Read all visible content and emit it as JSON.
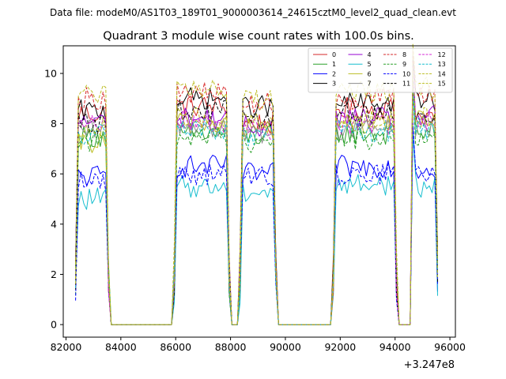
{
  "header": {
    "data_file": "Data file: modeM0/AS1T03_189T01_9000003614_24615cztM0_level2_quad_clean.evt",
    "title": "Quadrant 3 module wise count rates with 100.0s bins."
  },
  "chart_data": {
    "type": "line",
    "title": "Quadrant 3 module wise count rates with 100.0s bins.",
    "x_offset_label": "+3.247e8",
    "xlim": [
      81900,
      96200
    ],
    "ylim": [
      -0.5,
      11.1
    ],
    "xticks": [
      82000,
      84000,
      86000,
      88000,
      90000,
      92000,
      94000,
      96000
    ],
    "yticks": [
      0,
      2,
      4,
      6,
      8,
      10
    ],
    "xtick_labels": [
      "82000",
      "84000",
      "86000",
      "88000",
      "90000",
      "92000",
      "94000",
      "96000"
    ],
    "ytick_labels": [
      "0",
      "2",
      "4",
      "6",
      "8",
      "10"
    ],
    "bin_seconds": 100,
    "segments": [
      {
        "start": 82350,
        "end": 83550
      },
      {
        "start": 85950,
        "end": 87950
      },
      {
        "start": 88350,
        "end": 89650
      },
      {
        "start": 91750,
        "end": 94050
      },
      {
        "start": 94650,
        "end": 95550
      }
    ],
    "legend": {
      "location": "top-right",
      "columns": 4
    },
    "series": [
      {
        "name": "0",
        "color": "#d62728",
        "dash": "solid",
        "base": [
          8.4,
          8.7,
          8.0,
          8.6,
          8.3
        ]
      },
      {
        "name": "1",
        "color": "#2ca02c",
        "dash": "solid",
        "base": [
          7.5,
          7.6,
          7.5,
          7.6,
          7.7
        ]
      },
      {
        "name": "2",
        "color": "#0000ff",
        "dash": "solid",
        "base": [
          5.9,
          6.3,
          6.0,
          6.3,
          6.2
        ]
      },
      {
        "name": "3",
        "color": "#000000",
        "dash": "solid",
        "base": [
          8.5,
          9.0,
          8.7,
          8.8,
          8.9
        ]
      },
      {
        "name": "4",
        "color": "#9400d3",
        "dash": "solid",
        "base": [
          8.1,
          8.2,
          7.9,
          8.2,
          8.3
        ]
      },
      {
        "name": "5",
        "color": "#17becf",
        "dash": "solid",
        "base": [
          5.0,
          5.5,
          5.3,
          5.6,
          5.5
        ]
      },
      {
        "name": "6",
        "color": "#bcbd22",
        "dash": "solid",
        "base": [
          7.2,
          8.0,
          7.8,
          8.0,
          8.1
        ]
      },
      {
        "name": "7",
        "color": "#8c8c8c",
        "dash": "solid",
        "base": [
          7.7,
          7.9,
          7.6,
          7.8,
          7.9
        ]
      },
      {
        "name": "8",
        "color": "#d62728",
        "dash": "dashed",
        "base": [
          9.0,
          9.2,
          8.8,
          9.0,
          9.2
        ]
      },
      {
        "name": "9",
        "color": "#2ca02c",
        "dash": "dashed",
        "base": [
          7.3,
          7.5,
          7.3,
          7.4,
          7.5
        ]
      },
      {
        "name": "10",
        "color": "#0000ff",
        "dash": "dashed",
        "base": [
          5.7,
          6.0,
          5.9,
          6.0,
          6.0
        ]
      },
      {
        "name": "11",
        "color": "#000000",
        "dash": "dashed",
        "base": [
          8.0,
          8.5,
          8.2,
          8.3,
          8.4
        ]
      },
      {
        "name": "12",
        "color": "#d62ad6",
        "dash": "dashed",
        "base": [
          7.9,
          8.1,
          7.8,
          8.0,
          8.1
        ]
      },
      {
        "name": "13",
        "color": "#17becf",
        "dash": "dashed",
        "base": [
          7.6,
          7.8,
          7.5,
          7.7,
          7.8
        ]
      },
      {
        "name": "14",
        "color": "#bcbd22",
        "dash": "dashed",
        "base": [
          9.2,
          9.4,
          9.0,
          9.3,
          9.4
        ]
      },
      {
        "name": "15",
        "color": "#bcbd22",
        "dash": "dashed",
        "base": [
          7.9,
          8.2,
          8.0,
          8.1,
          8.2
        ]
      }
    ]
  }
}
